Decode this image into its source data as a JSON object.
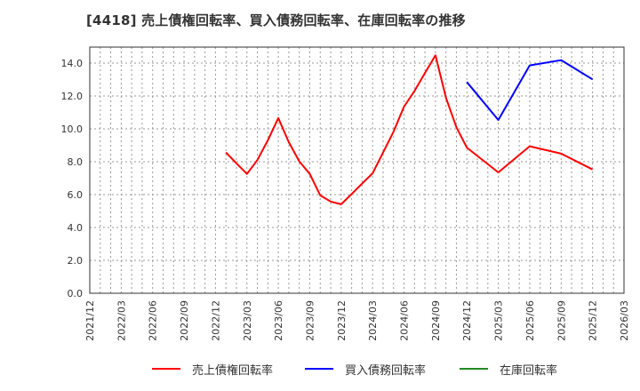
{
  "header": {
    "title": "[4418]  売上債権回転率、買入債務回転率、在庫回転率の推移"
  },
  "legend": {
    "items": [
      {
        "label": "売上債権回転率",
        "color": "#ff0000"
      },
      {
        "label": "買入債務回転率",
        "color": "#0000ff"
      },
      {
        "label": "在庫回転率",
        "color": "#228b22"
      }
    ]
  },
  "chart_data": {
    "type": "line",
    "title": "[4418]  売上債権回転率、買入債務回転率、在庫回転率の推移",
    "xlabel": "",
    "ylabel": "",
    "ylim": [
      0,
      15
    ],
    "yticks": [
      0.0,
      2.0,
      4.0,
      6.0,
      8.0,
      10.0,
      12.0,
      14.0
    ],
    "ytick_labels": [
      "0.0",
      "2.0",
      "4.0",
      "6.0",
      "8.0",
      "10.0",
      "12.0",
      "14.0"
    ],
    "xlim": [
      "2021/12",
      "2026/03"
    ],
    "xtick_labels": [
      "2021/12",
      "2022/03",
      "2022/06",
      "2022/09",
      "2022/12",
      "2023/03",
      "2023/06",
      "2023/09",
      "2023/12",
      "2024/03",
      "2024/06",
      "2024/09",
      "2024/12",
      "2025/03",
      "2025/06",
      "2025/09",
      "2025/12",
      "2026/03"
    ],
    "grid": true,
    "legend_position": "bottom",
    "series": [
      {
        "name": "売上債権回転率",
        "color": "#ff0000",
        "x": [
          "2023/01",
          "2023/02",
          "2023/03",
          "2023/04",
          "2023/05",
          "2023/06",
          "2023/07",
          "2023/08",
          "2023/09",
          "2023/10",
          "2023/11",
          "2023/12",
          "2024/01",
          "2024/02",
          "2024/03",
          "2024/04",
          "2024/05",
          "2024/06",
          "2024/07",
          "2024/08",
          "2024/09",
          "2024/10",
          "2024/11",
          "2024/12",
          "2025/03",
          "2025/06",
          "2025/09",
          "2025/12"
        ],
        "values": [
          8.56,
          7.9,
          7.26,
          8.1,
          9.3,
          10.66,
          9.19,
          8.02,
          7.26,
          5.95,
          5.58,
          5.41,
          6.04,
          6.67,
          7.3,
          8.56,
          9.82,
          11.35,
          12.3,
          13.4,
          14.47,
          11.89,
          10.09,
          8.86,
          7.35,
          8.94,
          8.49,
          7.53
        ]
      },
      {
        "name": "買入債務回転率",
        "color": "#0000ff",
        "x": [
          "2024/12",
          "2025/03",
          "2025/06",
          "2025/09",
          "2025/12"
        ],
        "values": [
          12.85,
          10.54,
          13.86,
          14.18,
          13.01
        ]
      },
      {
        "name": "在庫回転率",
        "color": "#228b22",
        "x": [],
        "values": []
      }
    ]
  }
}
